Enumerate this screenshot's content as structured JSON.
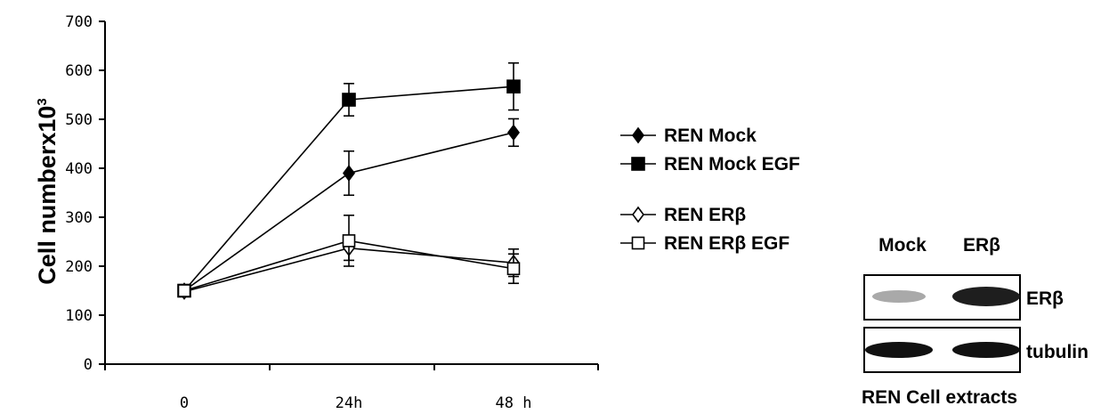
{
  "chart_data": {
    "type": "line",
    "ylabel": "Cell numberx10³",
    "ylabel_main": "Cell numberx10",
    "ylabel_sup": "3",
    "xlabel": "",
    "categories": [
      "0",
      "24h",
      "48 h"
    ],
    "ylim": [
      0,
      700
    ],
    "yticks": [
      0,
      100,
      200,
      300,
      400,
      500,
      600,
      700
    ],
    "legend_position": "right",
    "series": [
      {
        "name": "REN Mock",
        "marker": "filled-diamond",
        "values": [
          150,
          390,
          473
        ],
        "errors": [
          8,
          45,
          28
        ]
      },
      {
        "name": "REN Mock EGF",
        "marker": "filled-square",
        "values": [
          150,
          540,
          567
        ],
        "errors": [
          8,
          33,
          48
        ]
      },
      {
        "name": "REN ERβ",
        "marker": "open-diamond",
        "values": [
          148,
          237,
          207
        ],
        "errors": [
          8,
          25,
          28
        ]
      },
      {
        "name": "REN ERβ EGF",
        "marker": "open-square",
        "values": [
          150,
          252,
          195
        ],
        "errors": [
          8,
          52,
          30
        ]
      }
    ]
  },
  "blot": {
    "columns": [
      "Mock",
      "ERβ"
    ],
    "rows": [
      "ERβ",
      "tubulin"
    ],
    "caption": "REN Cell extracts"
  }
}
